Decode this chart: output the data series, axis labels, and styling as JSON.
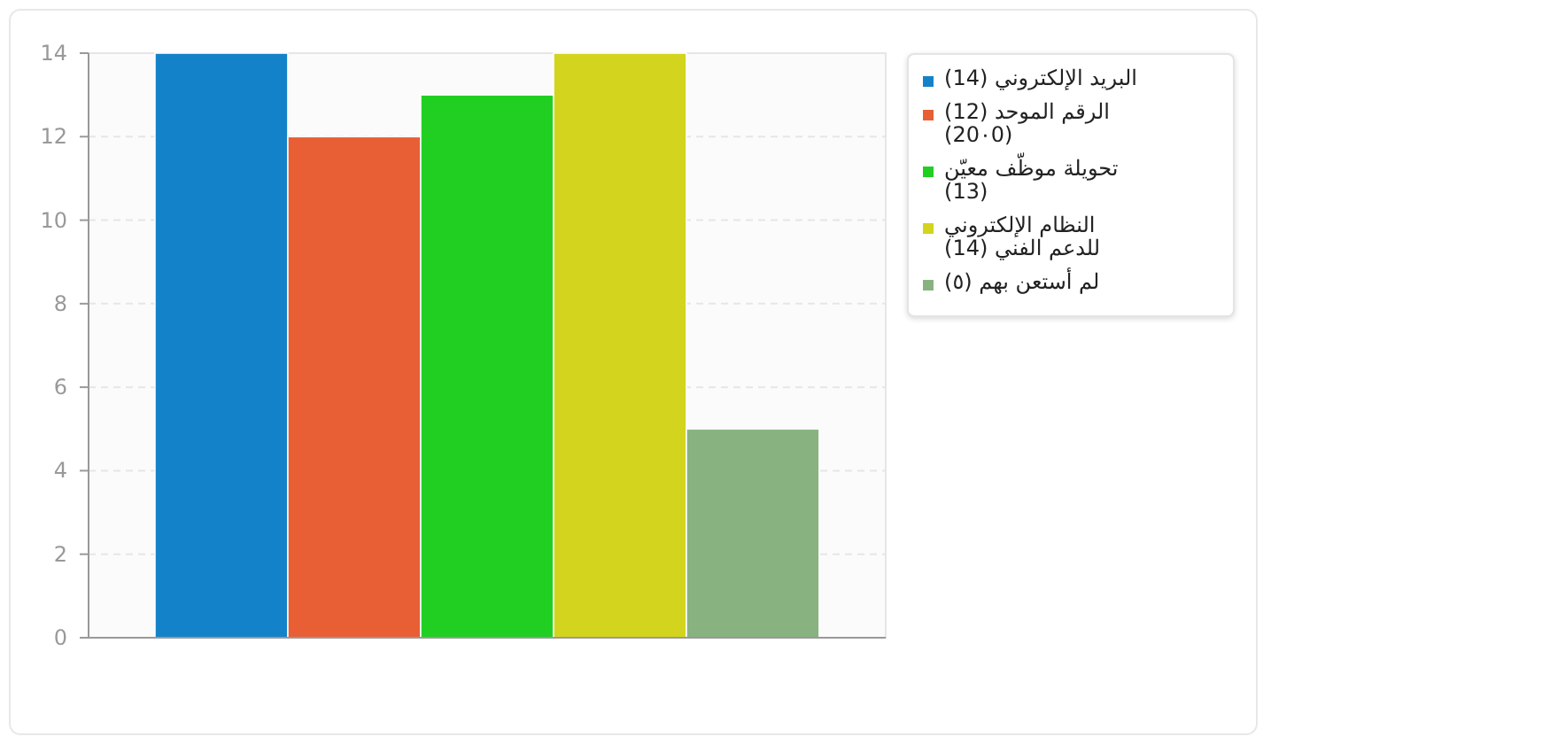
{
  "chart_data": {
    "type": "bar",
    "categories": [
      null
    ],
    "series": [
      {
        "name": "البريد الإلكتروني (14)",
        "color": "#1482c8",
        "values": [
          14
        ]
      },
      {
        "name": "الرقم الموحد (12) (20٠0)",
        "color": "#e85f35",
        "values": [
          12
        ]
      },
      {
        "name": "تحويلة موظّف معيّن (13)",
        "color": "#21cf22",
        "values": [
          13
        ]
      },
      {
        "name": "النظام الإلكتروني للدعم الفني (14)",
        "color": "#d3d41e",
        "values": [
          14
        ]
      },
      {
        "name": "لم أستعن بهم (٥)",
        "color": "#88b381",
        "values": [
          5
        ]
      }
    ],
    "ylim": [
      0,
      14
    ],
    "yticks": [
      0,
      2,
      4,
      6,
      8,
      10,
      12,
      14
    ],
    "grid": "y",
    "legend": "right"
  }
}
